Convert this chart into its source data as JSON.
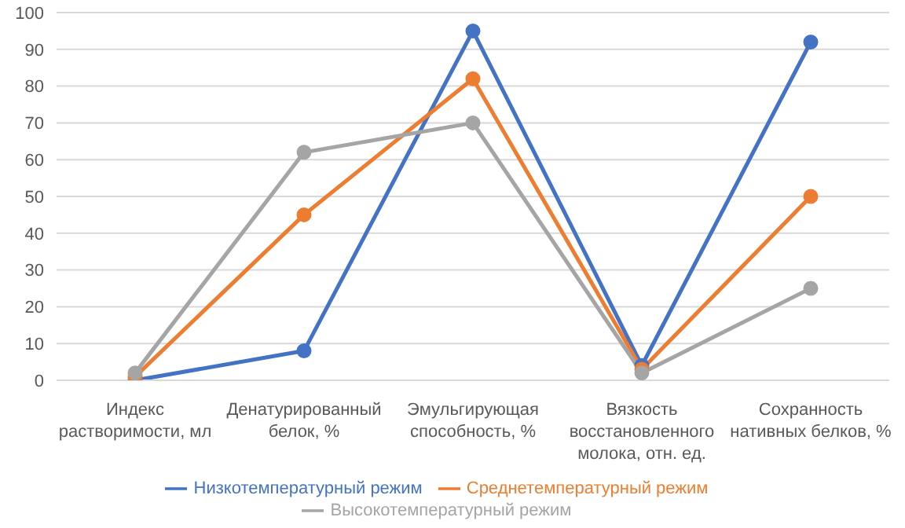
{
  "chart_data": {
    "type": "line",
    "categories": [
      "Индекс растворимости, мл",
      "Денатурированный белок, %",
      "Эмульгирующая способность, %",
      "Вязкость восстановленного молока, отн. ед.",
      "Сохранность нативных белков, %"
    ],
    "series": [
      {
        "name": "Низкотемпературный режим",
        "color": "#4472c4",
        "values": [
          0,
          8,
          95,
          4,
          92
        ]
      },
      {
        "name": "Среднетемпературный режим",
        "color": "#ed7d31",
        "values": [
          1,
          45,
          82,
          3,
          50
        ]
      },
      {
        "name": "Высокотемпературный режим",
        "color": "#a5a5a5",
        "values": [
          2,
          62,
          70,
          2,
          25
        ]
      }
    ],
    "ylim": [
      0,
      100
    ],
    "yticks": [
      0,
      10,
      20,
      30,
      40,
      50,
      60,
      70,
      80,
      90,
      100
    ],
    "grid": "y",
    "legend": "bottom",
    "marker": "circle",
    "line_style": "solid"
  }
}
